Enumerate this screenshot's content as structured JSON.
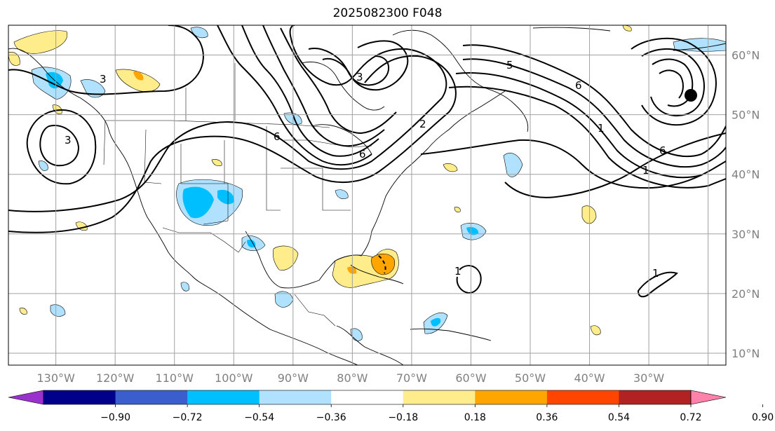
{
  "title": "2025082300 F048",
  "map": {
    "lon_range": [
      -138,
      -17
    ],
    "lat_range": [
      8,
      65
    ],
    "grid_lons": [
      -130,
      -120,
      -110,
      -100,
      -90,
      -80,
      -70,
      -60,
      -50,
      -40,
      -30,
      -20
    ],
    "grid_lats": [
      10,
      20,
      30,
      40,
      50,
      60
    ],
    "lon_labels": [
      "130°W",
      "120°W",
      "110°W",
      "100°W",
      "90°W",
      "80°W",
      "70°W",
      "60°W",
      "50°W",
      "40°W",
      "30°W"
    ],
    "lat_labels": [
      "10°N",
      "20°N",
      "30°N",
      "40°N",
      "50°N",
      "60°N"
    ],
    "gridline_color": "#a0a0a0",
    "label_color": "#808080"
  },
  "contour_labels": [
    "3",
    "3",
    "3",
    "6",
    "6",
    "6",
    "6",
    "1",
    "1",
    "2",
    "5",
    "1",
    "1"
  ],
  "colorbar": {
    "ticks": [
      "−0.90",
      "−0.72",
      "−0.54",
      "−0.36",
      "−0.18",
      "0.18",
      "0.36",
      "0.54",
      "0.72",
      "0.90"
    ],
    "colors": [
      "#9932cc",
      "#00008b",
      "#3a5fcd",
      "#00bfff",
      "#b0e2ff",
      "#ffffff",
      "#ffec8b",
      "#ffa500",
      "#ff4500",
      "#b22222",
      "#ff82ab"
    ],
    "extend": "both"
  }
}
